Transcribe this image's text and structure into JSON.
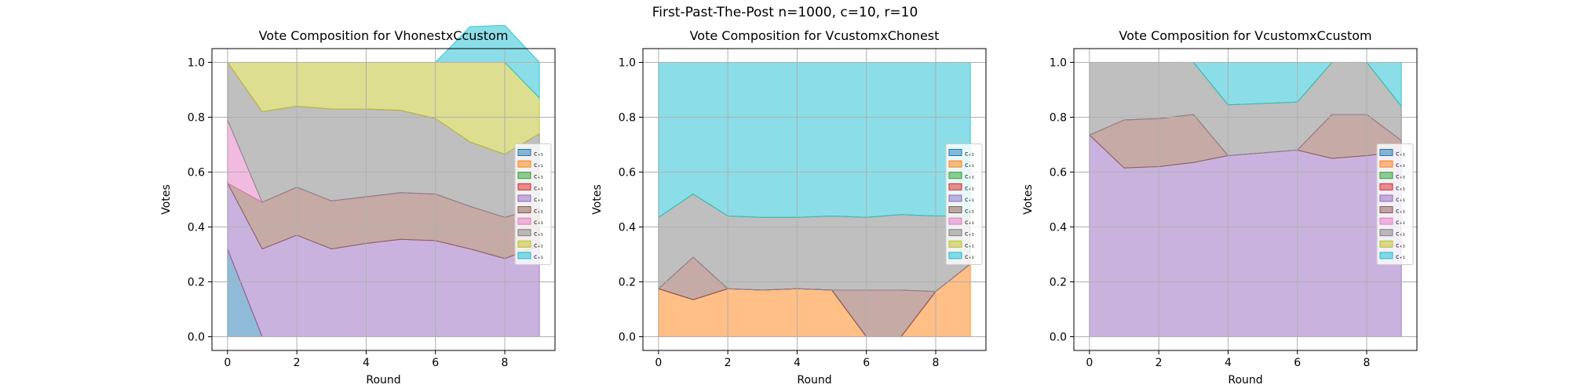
{
  "figure": {
    "title": "First-Past-The-Post n=1000, c=10, r=10"
  },
  "legend_labels": [
    "c₊₁",
    "c₊₁",
    "c₊₁",
    "c₊₁",
    "c₊₁",
    "c₊₁",
    "c₊₁",
    "c₊₁",
    "c₊₁",
    "c₊₁"
  ],
  "colors": [
    "#1f77b4",
    "#ff7f0e",
    "#2ca02c",
    "#d62728",
    "#9467bd",
    "#8c564b",
    "#e377c2",
    "#7f7f7f",
    "#bcbd22",
    "#17becf"
  ],
  "chart_data": [
    {
      "type": "area",
      "title": "Vote Composition for VhonestxCcustom",
      "xlabel": "Round",
      "ylabel": "Votes",
      "x": [
        0,
        1,
        2,
        3,
        4,
        5,
        6,
        7,
        8,
        9
      ],
      "xlim": [
        -0.45,
        9.45
      ],
      "ylim": [
        -0.05,
        1.05
      ],
      "xticks": [
        0,
        2,
        4,
        6,
        8
      ],
      "yticks": [
        0.0,
        0.2,
        0.4,
        0.6,
        0.8,
        1.0
      ],
      "grid": true,
      "legend_position": "center-right",
      "series": [
        {
          "values": [
            0.32,
            0,
            0,
            0,
            0,
            0,
            0,
            0,
            0,
            0
          ]
        },
        {
          "values": [
            0,
            0,
            0,
            0,
            0,
            0,
            0,
            0,
            0,
            0
          ]
        },
        {
          "values": [
            0,
            0,
            0,
            0,
            0,
            0,
            0,
            0,
            0,
            0
          ]
        },
        {
          "values": [
            0,
            0,
            0,
            0,
            0,
            0,
            0,
            0,
            0,
            0
          ]
        },
        {
          "values": [
            0.24,
            0.32,
            0.37,
            0.32,
            0.34,
            0.355,
            0.35,
            0.32,
            0.285,
            0.33
          ]
        },
        {
          "values": [
            0,
            0.17,
            0.175,
            0.175,
            0.17,
            0.17,
            0.17,
            0.155,
            0.15,
            0.14
          ]
        },
        {
          "values": [
            0.23,
            0,
            0,
            0,
            0,
            0,
            0,
            0,
            0,
            0
          ]
        },
        {
          "values": [
            0.21,
            0.33,
            0.295,
            0.335,
            0.32,
            0.3,
            0.275,
            0.235,
            0.23,
            0.27
          ]
        },
        {
          "values": [
            0,
            0.18,
            0.16,
            0.17,
            0.17,
            0.175,
            0.205,
            0.29,
            0.335,
            0.13
          ]
        },
        {
          "values": [
            0,
            0,
            0,
            0,
            0,
            0,
            0,
            0.13,
            0.135,
            0.13
          ]
        }
      ]
    },
    {
      "type": "area",
      "title": "Vote Composition for VcustomxChonest",
      "xlabel": "Round",
      "ylabel": "Votes",
      "x": [
        0,
        1,
        2,
        3,
        4,
        5,
        6,
        7,
        8,
        9
      ],
      "xlim": [
        -0.45,
        9.45
      ],
      "ylim": [
        -0.05,
        1.05
      ],
      "xticks": [
        0,
        2,
        4,
        6,
        8
      ],
      "yticks": [
        0.0,
        0.2,
        0.4,
        0.6,
        0.8,
        1.0
      ],
      "grid": true,
      "legend_position": "center-right",
      "series": [
        {
          "values": [
            0,
            0,
            0,
            0,
            0,
            0,
            0,
            0,
            0,
            0
          ]
        },
        {
          "values": [
            0.175,
            0.135,
            0.175,
            0.17,
            0.175,
            0.17,
            0,
            0,
            0.165,
            0.265
          ]
        },
        {
          "values": [
            0,
            0,
            0,
            0,
            0,
            0,
            0,
            0,
            0,
            0
          ]
        },
        {
          "values": [
            0,
            0,
            0,
            0,
            0,
            0,
            0,
            0,
            0,
            0
          ]
        },
        {
          "values": [
            0,
            0,
            0,
            0,
            0,
            0,
            0,
            0,
            0,
            0
          ]
        },
        {
          "values": [
            0,
            0.155,
            0,
            0,
            0,
            0,
            0.17,
            0.17,
            0,
            0
          ]
        },
        {
          "values": [
            0,
            0,
            0,
            0,
            0,
            0,
            0,
            0,
            0,
            0
          ]
        },
        {
          "values": [
            0.26,
            0.23,
            0.265,
            0.265,
            0.26,
            0.27,
            0.265,
            0.275,
            0.275,
            0.175
          ]
        },
        {
          "values": [
            0,
            0,
            0,
            0,
            0,
            0,
            0,
            0,
            0,
            0
          ]
        },
        {
          "values": [
            0.565,
            0.48,
            0.56,
            0.565,
            0.565,
            0.56,
            0.565,
            0.555,
            0.56,
            0.56
          ]
        }
      ]
    },
    {
      "type": "area",
      "title": "Vote Composition for VcustomxCcustom",
      "xlabel": "Round",
      "ylabel": "Votes",
      "x": [
        0,
        1,
        2,
        3,
        4,
        5,
        6,
        7,
        8,
        9
      ],
      "xlim": [
        -0.45,
        9.45
      ],
      "ylim": [
        -0.05,
        1.05
      ],
      "xticks": [
        0,
        2,
        4,
        6,
        8
      ],
      "yticks": [
        0.0,
        0.2,
        0.4,
        0.6,
        0.8,
        1.0
      ],
      "grid": true,
      "legend_position": "center-right",
      "series": [
        {
          "values": [
            0,
            0,
            0,
            0,
            0,
            0,
            0,
            0,
            0,
            0
          ]
        },
        {
          "values": [
            0,
            0,
            0,
            0,
            0,
            0,
            0,
            0,
            0,
            0
          ]
        },
        {
          "values": [
            0,
            0,
            0,
            0,
            0,
            0,
            0,
            0,
            0,
            0
          ]
        },
        {
          "values": [
            0,
            0,
            0,
            0,
            0,
            0,
            0,
            0,
            0,
            0
          ]
        },
        {
          "values": [
            0.735,
            0.615,
            0.62,
            0.635,
            0.66,
            0.67,
            0.68,
            0.65,
            0.66,
            0.675
          ]
        },
        {
          "values": [
            0,
            0.175,
            0.175,
            0.175,
            0,
            0,
            0,
            0.16,
            0.15,
            0.04
          ]
        },
        {
          "values": [
            0,
            0,
            0,
            0,
            0,
            0,
            0,
            0,
            0,
            0
          ]
        },
        {
          "values": [
            0.265,
            0.21,
            0.205,
            0.19,
            0.185,
            0.18,
            0.175,
            0.19,
            0.19,
            0.125
          ]
        },
        {
          "values": [
            0,
            0,
            0,
            0,
            0,
            0,
            0,
            0,
            0,
            0
          ]
        },
        {
          "values": [
            0,
            0,
            0,
            0,
            0.155,
            0.15,
            0.145,
            0,
            0,
            0.16
          ]
        }
      ]
    }
  ]
}
